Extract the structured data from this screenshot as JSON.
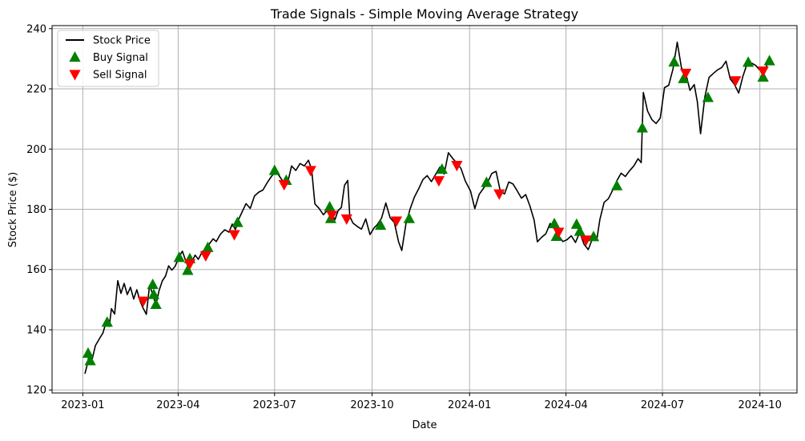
{
  "chart_data": {
    "type": "line",
    "title": "Trade Signals - Simple Moving Average Strategy",
    "xlabel": "Date",
    "ylabel": "Stock Price ($)",
    "xlim": [
      "2022-12-03",
      "2024-11-05"
    ],
    "ylim": [
      119,
      241
    ],
    "x_ticks": [
      "2023-01",
      "2023-04",
      "2023-07",
      "2023-10",
      "2024-01",
      "2024-04",
      "2024-07",
      "2024-10"
    ],
    "y_ticks": [
      120,
      140,
      160,
      180,
      200,
      220,
      240
    ],
    "grid": true,
    "legend": "top-left",
    "legend_entries": [
      "Stock Price",
      "Buy Signal",
      "Sell Signal"
    ],
    "colors": {
      "price": "#000000",
      "buy": "#008000",
      "sell": "#ff0000",
      "grid": "#b0b0b0"
    },
    "series": [
      {
        "name": "Stock Price",
        "kind": "line",
        "points": [
          [
            "2023-01-03",
            125.4
          ],
          [
            "2023-01-05",
            128.2
          ],
          [
            "2023-01-07",
            131.8
          ],
          [
            "2023-01-10",
            130.5
          ],
          [
            "2023-01-13",
            134.8
          ],
          [
            "2023-01-17",
            137.2
          ],
          [
            "2023-01-20",
            138.9
          ],
          [
            "2023-01-23",
            142.6
          ],
          [
            "2023-01-26",
            141.1
          ],
          [
            "2023-01-28",
            147.0
          ],
          [
            "2023-01-31",
            145.2
          ],
          [
            "2023-02-03",
            156.3
          ],
          [
            "2023-02-06",
            152.1
          ],
          [
            "2023-02-09",
            155.4
          ],
          [
            "2023-02-12",
            151.7
          ],
          [
            "2023-02-15",
            154.1
          ],
          [
            "2023-02-18",
            150.2
          ],
          [
            "2023-02-21",
            153.3
          ],
          [
            "2023-02-24",
            149.6
          ],
          [
            "2023-02-27",
            147.1
          ],
          [
            "2023-03-02",
            145.1
          ],
          [
            "2023-03-05",
            154.7
          ],
          [
            "2023-03-08",
            151.8
          ],
          [
            "2023-03-11",
            148.2
          ],
          [
            "2023-03-14",
            153.0
          ],
          [
            "2023-03-17",
            156.2
          ],
          [
            "2023-03-20",
            157.8
          ],
          [
            "2023-03-23",
            161.2
          ],
          [
            "2023-03-26",
            159.8
          ],
          [
            "2023-03-29",
            161.0
          ],
          [
            "2023-04-02",
            164.2
          ],
          [
            "2023-04-05",
            166.1
          ],
          [
            "2023-04-08",
            163.0
          ],
          [
            "2023-04-11",
            160.3
          ],
          [
            "2023-04-14",
            162.6
          ],
          [
            "2023-04-17",
            164.8
          ],
          [
            "2023-04-20",
            163.4
          ],
          [
            "2023-04-24",
            166.1
          ],
          [
            "2023-04-27",
            164.2
          ],
          [
            "2023-04-30",
            168.3
          ],
          [
            "2023-05-04",
            170.2
          ],
          [
            "2023-05-07",
            169.3
          ],
          [
            "2023-05-11",
            171.8
          ],
          [
            "2023-05-15",
            173.2
          ],
          [
            "2023-05-19",
            172.4
          ],
          [
            "2023-05-22",
            175.1
          ],
          [
            "2023-05-25",
            173.3
          ],
          [
            "2023-05-28",
            176.6
          ],
          [
            "2023-06-01",
            179.6
          ],
          [
            "2023-06-04",
            181.9
          ],
          [
            "2023-06-08",
            180.3
          ],
          [
            "2023-06-12",
            184.4
          ],
          [
            "2023-06-16",
            185.7
          ],
          [
            "2023-06-20",
            186.4
          ],
          [
            "2023-06-24",
            188.8
          ],
          [
            "2023-06-28",
            190.9
          ],
          [
            "2023-07-02",
            192.6
          ],
          [
            "2023-07-05",
            191.3
          ],
          [
            "2023-07-08",
            189.7
          ],
          [
            "2023-07-11",
            188.2
          ],
          [
            "2023-07-14",
            189.8
          ],
          [
            "2023-07-17",
            194.4
          ],
          [
            "2023-07-21",
            192.9
          ],
          [
            "2023-07-25",
            195.2
          ],
          [
            "2023-07-29",
            194.4
          ],
          [
            "2023-08-02",
            196.3
          ],
          [
            "2023-08-05",
            193.2
          ],
          [
            "2023-08-08",
            181.8
          ],
          [
            "2023-08-12",
            180.3
          ],
          [
            "2023-08-16",
            178.2
          ],
          [
            "2023-08-20",
            179.8
          ],
          [
            "2023-08-24",
            178.2
          ],
          [
            "2023-08-27",
            176.6
          ],
          [
            "2023-08-30",
            179.6
          ],
          [
            "2023-09-02",
            180.6
          ],
          [
            "2023-09-05",
            188.0
          ],
          [
            "2023-09-08",
            189.6
          ],
          [
            "2023-09-10",
            177.6
          ],
          [
            "2023-09-13",
            175.4
          ],
          [
            "2023-09-17",
            174.3
          ],
          [
            "2023-09-21",
            173.4
          ],
          [
            "2023-09-25",
            176.8
          ],
          [
            "2023-09-29",
            171.6
          ],
          [
            "2023-10-03",
            173.9
          ],
          [
            "2023-10-06",
            174.9
          ],
          [
            "2023-10-10",
            177.1
          ],
          [
            "2023-10-14",
            182.1
          ],
          [
            "2023-10-18",
            177.2
          ],
          [
            "2023-10-22",
            175.6
          ],
          [
            "2023-10-26",
            169.2
          ],
          [
            "2023-10-29",
            166.3
          ],
          [
            "2023-11-02",
            175.2
          ],
          [
            "2023-11-06",
            180.2
          ],
          [
            "2023-11-10",
            184.1
          ],
          [
            "2023-11-14",
            186.8
          ],
          [
            "2023-11-18",
            189.9
          ],
          [
            "2023-11-22",
            191.2
          ],
          [
            "2023-11-26",
            189.2
          ],
          [
            "2023-11-30",
            191.6
          ],
          [
            "2023-12-04",
            194.0
          ],
          [
            "2023-12-08",
            191.7
          ],
          [
            "2023-12-12",
            198.8
          ],
          [
            "2023-12-16",
            196.9
          ],
          [
            "2023-12-20",
            195.4
          ],
          [
            "2023-12-24",
            193.5
          ],
          [
            "2023-12-28",
            189.4
          ],
          [
            "2024-01-02",
            186.0
          ],
          [
            "2024-01-06",
            180.2
          ],
          [
            "2024-01-10",
            184.9
          ],
          [
            "2024-01-14",
            186.9
          ],
          [
            "2024-01-18",
            188.9
          ],
          [
            "2024-01-22",
            191.9
          ],
          [
            "2024-01-26",
            192.6
          ],
          [
            "2024-01-30",
            186.0
          ],
          [
            "2024-02-03",
            185.1
          ],
          [
            "2024-02-07",
            189.1
          ],
          [
            "2024-02-11",
            188.4
          ],
          [
            "2024-02-15",
            186.1
          ],
          [
            "2024-02-19",
            183.7
          ],
          [
            "2024-02-23",
            184.9
          ],
          [
            "2024-02-27",
            181.1
          ],
          [
            "2024-03-02",
            176.3
          ],
          [
            "2024-03-05",
            169.2
          ],
          [
            "2024-03-09",
            170.7
          ],
          [
            "2024-03-13",
            171.9
          ],
          [
            "2024-03-17",
            175.3
          ],
          [
            "2024-03-21",
            173.5
          ],
          [
            "2024-03-25",
            171.3
          ],
          [
            "2024-03-29",
            169.3
          ],
          [
            "2024-04-02",
            169.9
          ],
          [
            "2024-04-06",
            171.2
          ],
          [
            "2024-04-10",
            169.0
          ],
          [
            "2024-04-14",
            172.4
          ],
          [
            "2024-04-18",
            168.4
          ],
          [
            "2024-04-22",
            166.6
          ],
          [
            "2024-04-26",
            170.3
          ],
          [
            "2024-04-30",
            169.7
          ],
          [
            "2024-05-03",
            176.6
          ],
          [
            "2024-05-07",
            182.3
          ],
          [
            "2024-05-11",
            183.5
          ],
          [
            "2024-05-15",
            186.3
          ],
          [
            "2024-05-19",
            189.5
          ],
          [
            "2024-05-23",
            192.0
          ],
          [
            "2024-05-27",
            190.9
          ],
          [
            "2024-05-31",
            192.8
          ],
          [
            "2024-06-04",
            194.4
          ],
          [
            "2024-06-08",
            196.8
          ],
          [
            "2024-06-11",
            195.5
          ],
          [
            "2024-06-13",
            218.8
          ],
          [
            "2024-06-17",
            212.6
          ],
          [
            "2024-06-21",
            209.8
          ],
          [
            "2024-06-25",
            208.5
          ],
          [
            "2024-06-29",
            210.3
          ],
          [
            "2024-07-03",
            220.4
          ],
          [
            "2024-07-07",
            221.2
          ],
          [
            "2024-07-11",
            226.6
          ],
          [
            "2024-07-15",
            235.5
          ],
          [
            "2024-07-19",
            226.9
          ],
          [
            "2024-07-23",
            225.2
          ],
          [
            "2024-07-27",
            219.5
          ],
          [
            "2024-07-31",
            221.4
          ],
          [
            "2024-08-03",
            215.7
          ],
          [
            "2024-08-06",
            205.1
          ],
          [
            "2024-08-10",
            217.2
          ],
          [
            "2024-08-14",
            223.8
          ],
          [
            "2024-08-18",
            225.1
          ],
          [
            "2024-08-22",
            226.3
          ],
          [
            "2024-08-26",
            227.1
          ],
          [
            "2024-08-30",
            229.2
          ],
          [
            "2024-09-03",
            223.3
          ],
          [
            "2024-09-07",
            221.5
          ],
          [
            "2024-09-11",
            218.6
          ],
          [
            "2024-09-15",
            224.2
          ],
          [
            "2024-09-19",
            228.4
          ],
          [
            "2024-09-23",
            228.6
          ],
          [
            "2024-09-27",
            227.8
          ],
          [
            "2024-10-01",
            226.2
          ],
          [
            "2024-10-05",
            225.5
          ],
          [
            "2024-10-08",
            228.3
          ]
        ]
      },
      {
        "name": "Buy Signal",
        "kind": "markers",
        "marker": "triangle-up",
        "points": [
          [
            "2023-01-06",
            132.2
          ],
          [
            "2023-01-08",
            129.7
          ],
          [
            "2023-01-24",
            142.5
          ],
          [
            "2023-03-08",
            155.0
          ],
          [
            "2023-03-09",
            151.7
          ],
          [
            "2023-03-11",
            148.4
          ],
          [
            "2023-04-02",
            164.0
          ],
          [
            "2023-04-10",
            159.7
          ],
          [
            "2023-04-12",
            163.6
          ],
          [
            "2023-04-29",
            167.3
          ],
          [
            "2023-05-27",
            175.6
          ],
          [
            "2023-07-01",
            192.9
          ],
          [
            "2023-07-12",
            189.6
          ],
          [
            "2023-08-22",
            180.8
          ],
          [
            "2023-08-23",
            176.9
          ],
          [
            "2023-10-09",
            174.7
          ],
          [
            "2023-11-05",
            176.9
          ],
          [
            "2023-12-06",
            193.3
          ],
          [
            "2024-01-17",
            188.9
          ],
          [
            "2024-03-21",
            175.2
          ],
          [
            "2024-03-23",
            171.0
          ],
          [
            "2024-04-11",
            175.0
          ],
          [
            "2024-04-14",
            172.7
          ],
          [
            "2024-04-27",
            170.9
          ],
          [
            "2024-05-19",
            187.8
          ],
          [
            "2024-06-12",
            207.0
          ],
          [
            "2024-07-12",
            228.9
          ],
          [
            "2024-07-21",
            223.4
          ],
          [
            "2024-08-13",
            217.1
          ],
          [
            "2024-09-20",
            228.8
          ],
          [
            "2024-10-04",
            223.9
          ],
          [
            "2024-10-10",
            229.3
          ]
        ]
      },
      {
        "name": "Sell Signal",
        "kind": "markers",
        "marker": "triangle-down",
        "points": [
          [
            "2023-02-27",
            149.5
          ],
          [
            "2023-04-12",
            161.9
          ],
          [
            "2023-04-27",
            164.6
          ],
          [
            "2023-05-24",
            171.6
          ],
          [
            "2023-07-10",
            188.2
          ],
          [
            "2023-08-04",
            192.9
          ],
          [
            "2023-08-24",
            178.0
          ],
          [
            "2023-09-07",
            176.8
          ],
          [
            "2023-10-24",
            176.1
          ],
          [
            "2023-12-03",
            189.5
          ],
          [
            "2023-12-20",
            194.6
          ],
          [
            "2024-01-29",
            185.1
          ],
          [
            "2024-03-25",
            172.4
          ],
          [
            "2024-04-20",
            169.8
          ],
          [
            "2024-07-23",
            225.2
          ],
          [
            "2024-09-08",
            222.7
          ],
          [
            "2024-10-04",
            225.9
          ]
        ]
      }
    ]
  }
}
